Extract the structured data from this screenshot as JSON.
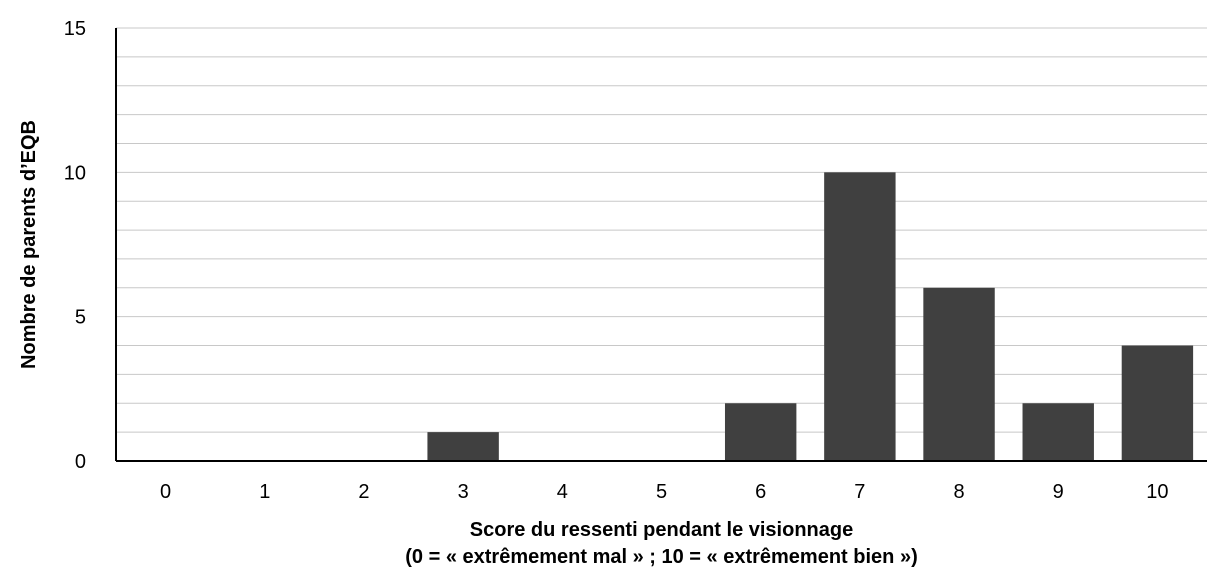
{
  "chart_data": {
    "type": "bar",
    "categories": [
      "0",
      "1",
      "2",
      "3",
      "4",
      "5",
      "6",
      "7",
      "8",
      "9",
      "10"
    ],
    "values": [
      0,
      0,
      0,
      1,
      0,
      0,
      2,
      10,
      6,
      2,
      4
    ],
    "xlabel": "Score du ressenti pendant le visionnage",
    "xlabel_line2": "(0 = « extrêmement mal » ; 10 = « extrêmement bien »)",
    "ylabel": "Nombre de parents d’EQB",
    "ylim": [
      0,
      15
    ],
    "yticks": [
      0,
      5,
      10,
      15
    ],
    "minor_grid_step": 1,
    "grid": true,
    "legend": "none",
    "colors": {
      "bar": "#404040",
      "grid": "#c8c8c8",
      "axis": "#000000"
    }
  }
}
